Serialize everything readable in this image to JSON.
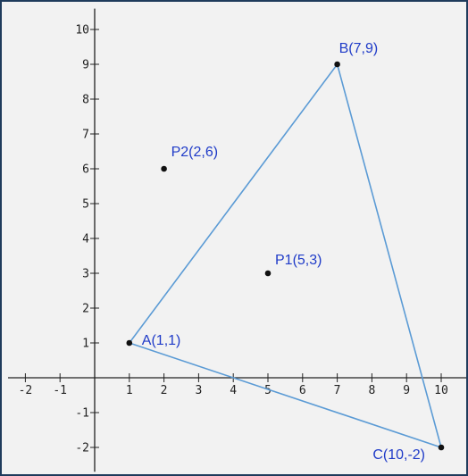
{
  "chart_data": {
    "type": "scatter",
    "title": "",
    "xlabel": "",
    "ylabel": "",
    "xlim": [
      -2.5,
      10.8
    ],
    "ylim": [
      -2.7,
      10.6
    ],
    "x_ticks": [
      -2,
      -1,
      1,
      2,
      3,
      4,
      5,
      6,
      7,
      8,
      9,
      10
    ],
    "y_ticks": [
      10,
      9,
      8,
      7,
      6,
      5,
      4,
      3,
      2,
      1,
      -1,
      -2
    ],
    "grid": false,
    "points": [
      {
        "label": "A(1,1)",
        "x": 1,
        "y": 1
      },
      {
        "label": "B(7,9)",
        "x": 7,
        "y": 9
      },
      {
        "label": "C(10,-2)",
        "x": 10,
        "y": -2
      },
      {
        "label": "P1(5,3)",
        "x": 5,
        "y": 3
      },
      {
        "label": "P2(2,6)",
        "x": 2,
        "y": 6
      }
    ],
    "polygon": [
      "A(1,1)",
      "B(7,9)",
      "C(10,-2)"
    ],
    "colors": {
      "triangle": "#5b9bd5",
      "labels": "#1f3bc8",
      "points": "#111111",
      "axes": "#222222"
    }
  }
}
